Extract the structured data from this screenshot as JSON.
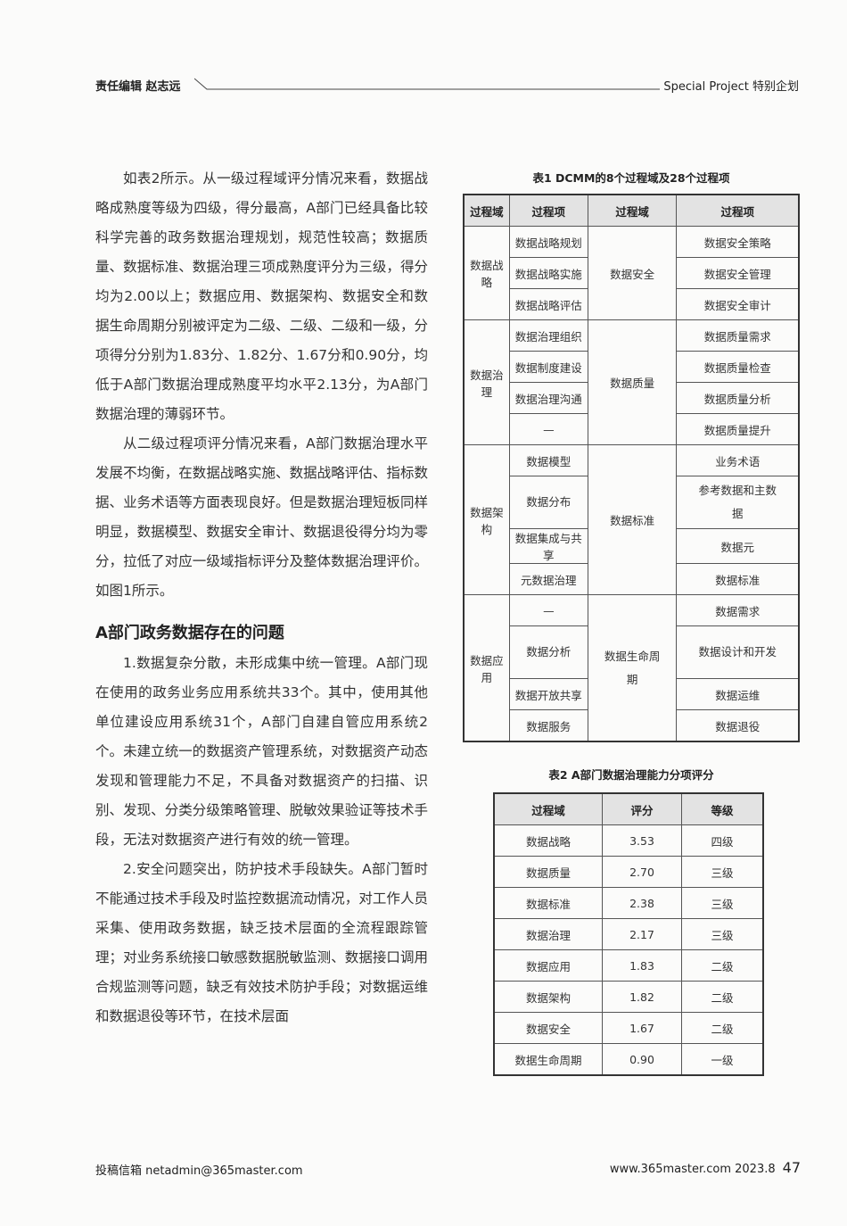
{
  "header": {
    "editor_label": "责任编辑  赵志远",
    "section": "Special Project 特别企划"
  },
  "body": {
    "paragraphs": [
      {
        "text": "如表2所示。从一级过程域评分情况来看，数据战略成熟度等级为四级，得分最高，A部门已经具备比较科学完善的政务数据治理规划，规范性较高；数据质量、数据标准、数据治理三项成熟度评分为三级，得分均为2.00以上；数据应用、数据架构、数据安全和数据生命周期分别被评定为二级、二级、二级和一级，分项得分分别为1.83分、1.82分、1.67分和0.90分，均低于A部门数据治理成熟度平均水平2.13分，为A部门数据治理的薄弱环节。"
      },
      {
        "text": "从二级过程项评分情况来看，A部门数据治理水平发展不均衡，在数据战略实施、数据战略评估、指标数据、业务术语等方面表现良好。但是数据治理短板同样明显，数据模型、数据安全审计、数据退役得分均为零分，拉低了对应一级域指标评分及整体数据治理评价。如图1所示。"
      }
    ],
    "section_heading": "A部门政务数据存在的问题",
    "paragraphs2": [
      {
        "text": "1.数据复杂分散，未形成集中统一管理。A部门现在使用的政务业务应用系统共33个。其中，使用其他单位建设应用系统31个，A部门自建自管应用系统2个。未建立统一的数据资产管理系统，对数据资产动态发现和管理能力不足，不具备对数据资产的扫描、识别、发现、分类分级策略管理、脱敏效果验证等技术手段，无法对数据资产进行有效的统一管理。"
      },
      {
        "text": "2.安全问题突出，防护技术手段缺失。A部门暂时不能通过技术手段及时监控数据流动情况，对工作人员采集、使用政务数据，缺乏技术层面的全流程跟踪管理；对业务系统接口敏感数据脱敏监测、数据接口调用合规监测等问题，缺乏有效技术防护手段；对数据运维和数据退役等环节，在技术层面"
      }
    ]
  },
  "table1": {
    "caption": "表1 DCMM的8个过程域及28个过程项",
    "headers": [
      "过程域",
      "过程项",
      "过程域",
      "过程项"
    ],
    "left_groups": [
      {
        "domain": "数据战略",
        "items": [
          "数据战略规划",
          "数据战略实施",
          "数据战略评估"
        ]
      },
      {
        "domain": "数据治理",
        "items": [
          "数据治理组织",
          "数据制度建设",
          "数据治理沟通",
          "—"
        ]
      },
      {
        "domain": "数据架构",
        "items": [
          "数据模型",
          "数据分布",
          "数据集成与共享",
          "元数据治理"
        ]
      },
      {
        "domain": "数据应用",
        "items": [
          "—",
          "数据分析",
          "数据开放共享",
          "数据服务"
        ]
      }
    ],
    "right_groups": [
      {
        "domain": "数据安全",
        "items": [
          "数据安全策略",
          "数据安全管理",
          "数据安全审计"
        ]
      },
      {
        "domain": "数据质量",
        "items": [
          "数据质量需求",
          "数据质量检查",
          "数据质量分析",
          "数据质量提升"
        ]
      },
      {
        "domain": "数据标准",
        "items": [
          "业务术语",
          "参考数据和主数据",
          "数据元",
          "数据标准"
        ]
      },
      {
        "domain": "数据生命周期",
        "items": [
          "数据需求",
          "数据设计和开发",
          "数据运维",
          "数据退役"
        ]
      }
    ]
  },
  "table2": {
    "caption": "表2 A部门数据治理能力分项评分",
    "headers": [
      "过程域",
      "评分",
      "等级"
    ],
    "rows": [
      [
        "数据战略",
        "3.53",
        "四级"
      ],
      [
        "数据质量",
        "2.70",
        "三级"
      ],
      [
        "数据标准",
        "2.38",
        "三级"
      ],
      [
        "数据治理",
        "2.17",
        "三级"
      ],
      [
        "数据应用",
        "1.83",
        "二级"
      ],
      [
        "数据架构",
        "1.82",
        "二级"
      ],
      [
        "数据安全",
        "1.67",
        "二级"
      ],
      [
        "数据生命周期",
        "0.90",
        "一级"
      ]
    ]
  },
  "footer": {
    "submission": "投稿信箱 netadmin@365master.com",
    "site_issue": "www.365master.com 2023.8",
    "page_number": "47"
  }
}
